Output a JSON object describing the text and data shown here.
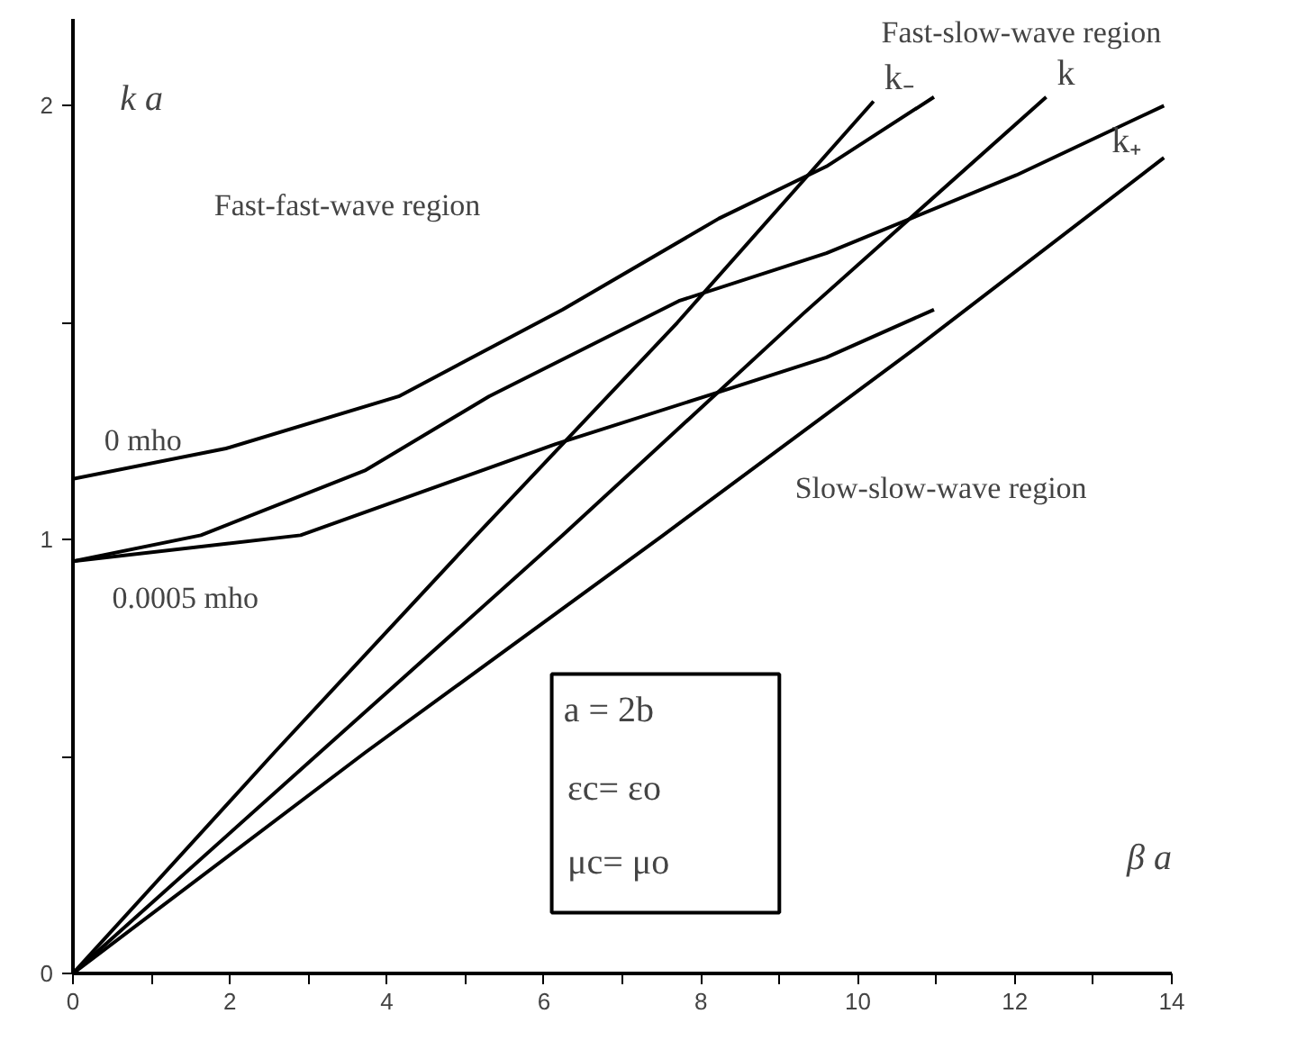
{
  "chart_data": {
    "type": "line",
    "xlabel": "β a",
    "ylabel": "k a",
    "xlim": [
      0,
      14
    ],
    "ylim": [
      0,
      2.2
    ],
    "xticks": [
      0,
      {
        "value": 1,
        "label": null
      },
      2,
      {
        "value": 3,
        "label": null
      },
      4,
      {
        "value": 5,
        "label": null
      },
      6,
      {
        "value": 7,
        "label": null
      },
      8,
      {
        "value": 9,
        "label": null
      },
      10,
      {
        "value": 11,
        "label": null
      },
      12,
      {
        "value": 13,
        "label": null
      },
      14
    ],
    "yticks": [
      0,
      {
        "value": 0.5,
        "label": null
      },
      1,
      {
        "value": 1.5,
        "label": null
      },
      2
    ],
    "grid": false,
    "legend": false,
    "line_style": "solid",
    "series": [
      {
        "color": "#000000",
        "x": [
          0,
          1.95,
          4.15,
          6.24,
          8.23,
          9.6,
          10.97
        ],
        "values": [
          1.14,
          1.21,
          1.33,
          1.53,
          1.74,
          1.86,
          2.02
        ]
      },
      {
        "color": "#000000",
        "x": [
          0,
          1.63,
          3.73,
          5.3,
          7.72,
          9.6,
          12.02,
          13.9
        ],
        "values": [
          0.95,
          1.01,
          1.16,
          1.33,
          1.55,
          1.66,
          1.84,
          2.0
        ]
      },
      {
        "color": "#000000",
        "x": [
          0,
          2.9,
          6.15,
          8.23,
          9.6,
          10.97
        ],
        "values": [
          0.95,
          1.01,
          1.22,
          1.34,
          1.42,
          1.53
        ]
      },
      {
        "name": "k₋",
        "color": "#000000",
        "x": [
          0,
          2.57,
          5.14,
          7.7,
          10.2
        ],
        "values": [
          0,
          0.51,
          1.01,
          1.5,
          2.01
        ]
      },
      {
        "name": "k",
        "color": "#000000",
        "x": [
          0,
          3.15,
          6.24,
          9.3,
          12.4
        ],
        "values": [
          0,
          0.51,
          1.01,
          1.52,
          2.02
        ]
      },
      {
        "name": "k₊",
        "color": "#000000",
        "x": [
          0,
          3.73,
          7.52,
          10.8,
          13.9
        ],
        "values": [
          0,
          0.51,
          1.01,
          1.45,
          1.88
        ]
      }
    ],
    "annotations": [
      "Fast-slow-wave region",
      "Fast-fast-wave region",
      "Slow-slow-wave region",
      {
        "text": "0 mho",
        "x": 0.4,
        "y": 1.14
      },
      {
        "text": "0.0005 mho",
        "x": 0.5,
        "y": 0.95
      },
      "a = 2b",
      "εc= εo",
      "μc= μo"
    ]
  }
}
